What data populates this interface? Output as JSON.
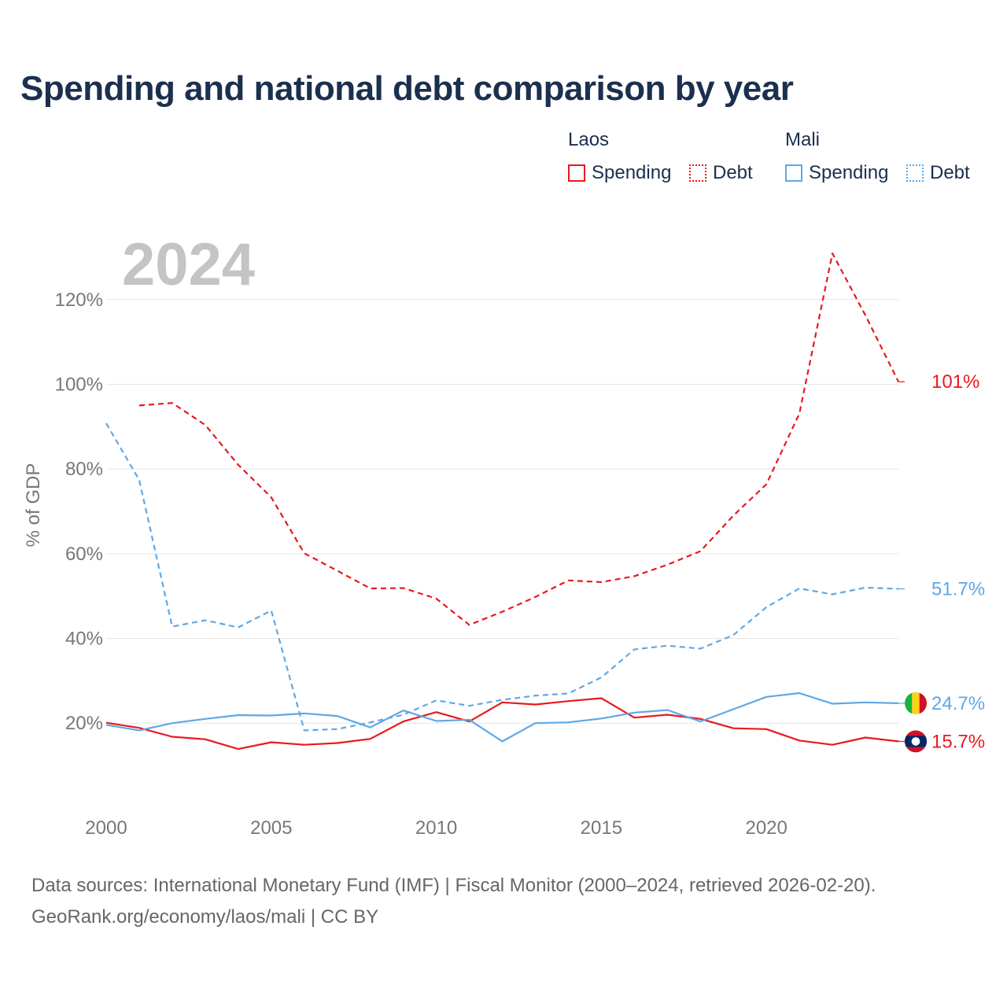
{
  "title": "Spending and national debt comparison by year",
  "legend": {
    "groups": [
      {
        "name": "Laos",
        "spending_label": "Spending",
        "debt_label": "Debt",
        "color": "#e8191e"
      },
      {
        "name": "Mali",
        "spending_label": "Spending",
        "debt_label": "Debt",
        "color": "#5ea8e5"
      }
    ]
  },
  "year_watermark": "2024",
  "footer": {
    "line1": "Data sources: International Monetary Fund (IMF) | Fiscal Monitor (2000–2024, retrieved 2026-02-20).",
    "line2": "GeoRank.org/economy/laos/mali | CC BY"
  },
  "chart_data": {
    "type": "line",
    "ylabel": "% of GDP",
    "xlim": [
      2000,
      2024
    ],
    "ylim": [
      5,
      135
    ],
    "x_ticks": [
      2000,
      2005,
      2010,
      2015,
      2020
    ],
    "y_ticks": [
      20,
      40,
      60,
      80,
      100,
      120
    ],
    "y_tick_labels": [
      "20%",
      "40%",
      "60%",
      "80%",
      "100%",
      "120%"
    ],
    "x": [
      2000,
      2001,
      2002,
      2003,
      2004,
      2005,
      2006,
      2007,
      2008,
      2009,
      2010,
      2011,
      2012,
      2013,
      2014,
      2015,
      2016,
      2017,
      2018,
      2019,
      2020,
      2021,
      2022,
      2023,
      2024
    ],
    "series": [
      {
        "name": "Laos Spending",
        "country": "Laos",
        "kind": "solid",
        "color": "#e8191e",
        "values": [
          20.1,
          18.9,
          16.8,
          16.2,
          13.9,
          15.5,
          14.9,
          15.3,
          16.3,
          20.4,
          22.6,
          20.4,
          24.9,
          24.4,
          25.2,
          25.9,
          21.3,
          22.0,
          21.0,
          18.8,
          18.6,
          15.9,
          14.9,
          16.6,
          15.7
        ],
        "end_label": "15.7%"
      },
      {
        "name": "Laos Debt",
        "country": "Laos",
        "kind": "dashed",
        "color": "#e8191e",
        "values": [
          null,
          95.0,
          95.6,
          90.4,
          81.0,
          73.3,
          60.1,
          56.0,
          51.8,
          51.9,
          49.4,
          43.2,
          46.3,
          49.8,
          53.7,
          53.3,
          54.7,
          57.4,
          60.6,
          69.0,
          76.4,
          93.1,
          130.9,
          116.3,
          100.6
        ],
        "end_label": "101%"
      },
      {
        "name": "Mali Spending",
        "country": "Mali",
        "kind": "solid",
        "color": "#5ea8e5",
        "values": [
          19.6,
          18.3,
          20.0,
          21.0,
          21.9,
          21.8,
          22.3,
          21.7,
          19.0,
          23.0,
          20.5,
          20.8,
          15.7,
          20.0,
          20.2,
          21.1,
          22.5,
          23.1,
          20.4,
          23.3,
          26.2,
          27.1,
          24.6,
          24.9,
          24.7
        ],
        "end_label": "24.7%"
      },
      {
        "name": "Mali Debt",
        "country": "Mali",
        "kind": "dashed",
        "color": "#5ea8e5",
        "values": [
          90.8,
          77.4,
          42.8,
          44.3,
          42.6,
          46.6,
          18.3,
          18.6,
          20.2,
          22.0,
          25.4,
          24.1,
          25.5,
          26.5,
          27.0,
          30.8,
          37.4,
          38.3,
          37.6,
          40.8,
          47.4,
          51.8,
          50.4,
          52.0,
          51.7
        ],
        "end_label": "51.7%"
      }
    ]
  }
}
